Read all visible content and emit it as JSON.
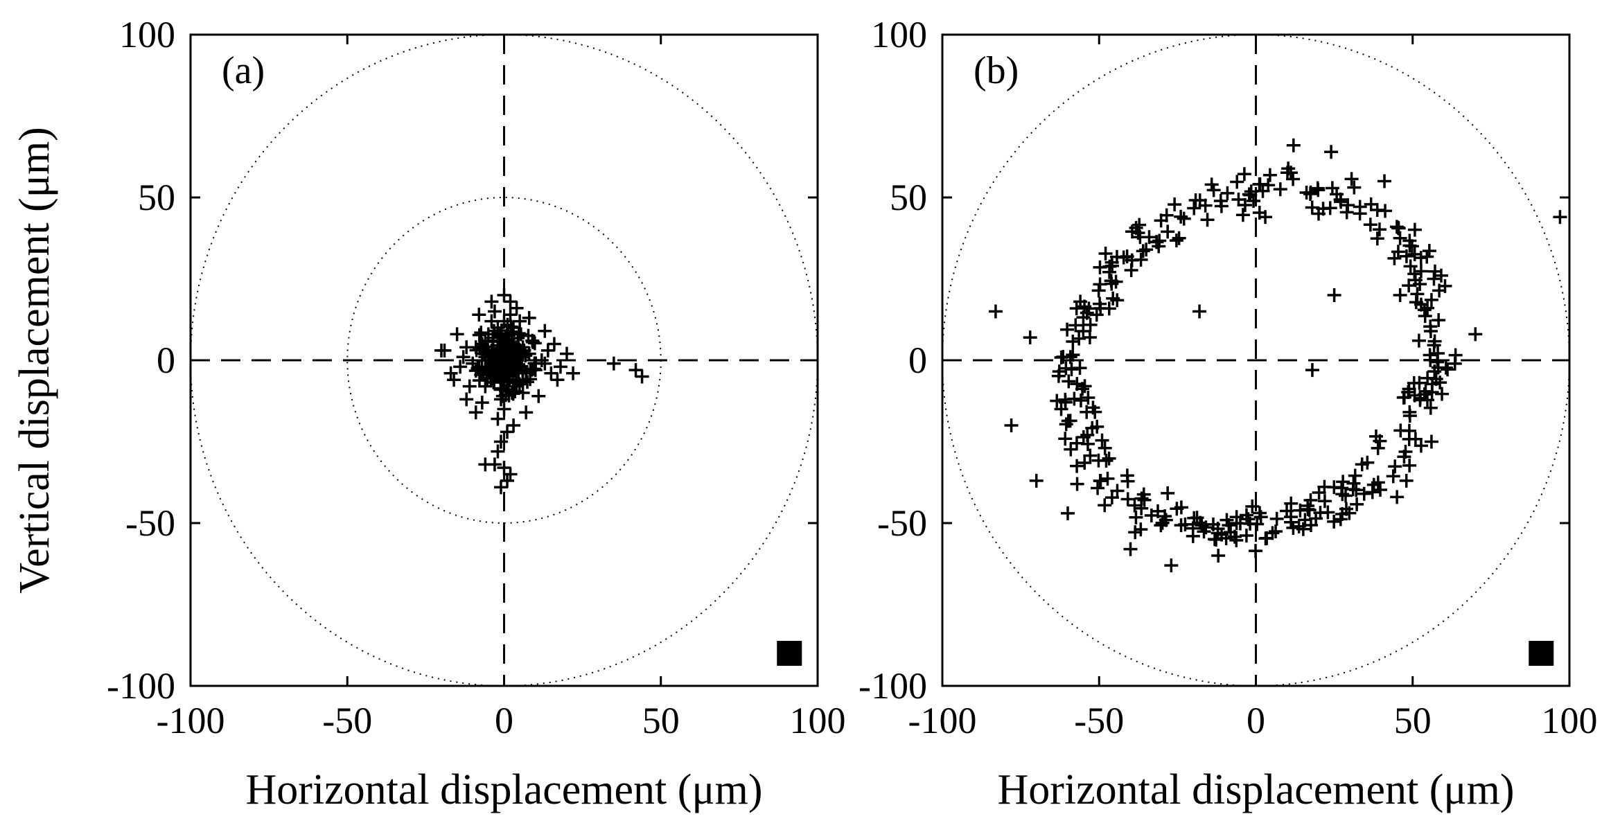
{
  "figure": {
    "description_free": true
  },
  "chart_data": [
    {
      "type": "scatter",
      "panel_label": "(a)",
      "xlabel": "Horizontal displacement (μm)",
      "ylabel": "Vertical displacement (μm)",
      "xlim": [
        -100,
        100
      ],
      "ylim": [
        -100,
        100
      ],
      "xticks": [
        "-100",
        "-50",
        "0",
        "50",
        "100"
      ],
      "yticks": [
        "100",
        "50",
        "0",
        "-50",
        "-100"
      ],
      "grid": false,
      "reference_circles_radius": [
        50,
        100
      ],
      "crosshair": "dashed lines at x=0 and y=0",
      "corner_marker": {
        "shape": "square",
        "x": 91,
        "y": -90
      },
      "marker": "+",
      "series": [
        {
          "name": "displacement",
          "points": [
            [
              -2,
              6
            ],
            [
              -4,
              3
            ],
            [
              0,
              2
            ],
            [
              3,
              5
            ],
            [
              2,
              -1
            ],
            [
              -1,
              -3
            ],
            [
              4,
              1
            ],
            [
              1,
              8
            ],
            [
              -3,
              -5
            ],
            [
              5,
              -2
            ],
            [
              -6,
              1
            ],
            [
              6,
              4
            ],
            [
              0,
              12
            ],
            [
              -2,
              10
            ],
            [
              2,
              14
            ],
            [
              3,
              10
            ],
            [
              1,
              -9
            ],
            [
              -1,
              -12
            ],
            [
              -5,
              8
            ],
            [
              7,
              -4
            ],
            [
              -8,
              -2
            ],
            [
              8,
              2
            ],
            [
              -7,
              5
            ],
            [
              4,
              -8
            ],
            [
              -3,
              15
            ],
            [
              2,
              18
            ],
            [
              0,
              20
            ],
            [
              -4,
              12
            ],
            [
              5,
              12
            ],
            [
              -9,
              4
            ],
            [
              9,
              6
            ],
            [
              -10,
              -1
            ],
            [
              10,
              -3
            ],
            [
              -6,
              -8
            ],
            [
              6,
              -10
            ],
            [
              0,
              -15
            ],
            [
              -2,
              -18
            ],
            [
              3,
              -20
            ],
            [
              1,
              -22
            ],
            [
              -1,
              -25
            ],
            [
              0,
              -33
            ],
            [
              -3,
              -32
            ],
            [
              -6,
              -32
            ],
            [
              1,
              -37
            ],
            [
              -1,
              -39
            ],
            [
              2,
              -35
            ],
            [
              -12,
              4
            ],
            [
              -14,
              -2
            ],
            [
              -16,
              -6
            ],
            [
              -11,
              -8
            ],
            [
              12,
              0
            ],
            [
              14,
              3
            ],
            [
              16,
              5
            ],
            [
              15,
              -4
            ],
            [
              18,
              -2
            ],
            [
              20,
              2
            ],
            [
              22,
              -4
            ],
            [
              -19,
              3
            ],
            [
              -15,
              8
            ],
            [
              13,
              9
            ],
            [
              -8,
              14
            ],
            [
              8,
              13
            ],
            [
              -12,
              -12
            ],
            [
              11,
              -11
            ],
            [
              -9,
              -16
            ],
            [
              7,
              -16
            ],
            [
              -4,
              18
            ],
            [
              4,
              16
            ],
            [
              -7,
              -13
            ],
            [
              -2,
              -28
            ],
            [
              35,
              -1
            ],
            [
              42,
              -3
            ],
            [
              44,
              -5
            ],
            [
              -20,
              3
            ],
            [
              -17,
              -4
            ],
            [
              17,
              -6
            ],
            [
              -13,
              1
            ],
            [
              13,
              -1
            ],
            [
              0,
              0
            ],
            [
              -1,
              1
            ],
            [
              1,
              -1
            ],
            [
              2,
              3
            ],
            [
              -3,
              -1
            ],
            [
              3,
              -3
            ],
            [
              -5,
              2
            ],
            [
              5,
              3
            ],
            [
              -4,
              -4
            ],
            [
              4,
              4
            ],
            [
              6,
              -6
            ],
            [
              -6,
              6
            ]
          ]
        }
      ]
    },
    {
      "type": "scatter",
      "panel_label": "(b)",
      "xlabel": "Horizontal displacement (μm)",
      "ylabel": "",
      "xlim": [
        -100,
        100
      ],
      "ylim": [
        -100,
        100
      ],
      "xticks": [
        "-100",
        "-50",
        "0",
        "50",
        "100"
      ],
      "yticks": [
        "100",
        "50",
        "0",
        "-50",
        "-100"
      ],
      "grid": false,
      "reference_circles_radius": [
        100
      ],
      "crosshair": "dashed lines at x=0 and y=0",
      "corner_marker": {
        "shape": "square",
        "x": 91,
        "y": -90
      },
      "marker": "+",
      "series": [
        {
          "name": "displacement",
          "ring": {
            "center": [
              0,
              0
            ],
            "rx": 60,
            "ry": 50,
            "rotation_deg": 28,
            "count": 340,
            "jitter": 6
          },
          "points": [
            [
              -83,
              15
            ],
            [
              -78,
              -20
            ],
            [
              -72,
              7
            ],
            [
              -70,
              -37
            ],
            [
              97,
              44
            ],
            [
              70,
              8
            ],
            [
              -57,
              -38
            ],
            [
              -27,
              -63
            ],
            [
              -12,
              -60
            ],
            [
              20,
              45
            ],
            [
              12,
              66
            ],
            [
              24,
              64
            ],
            [
              18,
              -3
            ],
            [
              -18,
              15
            ],
            [
              41,
              55
            ],
            [
              56,
              -25
            ],
            [
              48,
              -37
            ],
            [
              -40,
              -58
            ],
            [
              -56,
              18
            ],
            [
              46,
              20
            ],
            [
              -60,
              -47
            ],
            [
              25,
              20
            ],
            [
              -31,
              35
            ],
            [
              3,
              44
            ],
            [
              -35,
              34
            ],
            [
              45,
              -42
            ]
          ]
        }
      ]
    }
  ]
}
